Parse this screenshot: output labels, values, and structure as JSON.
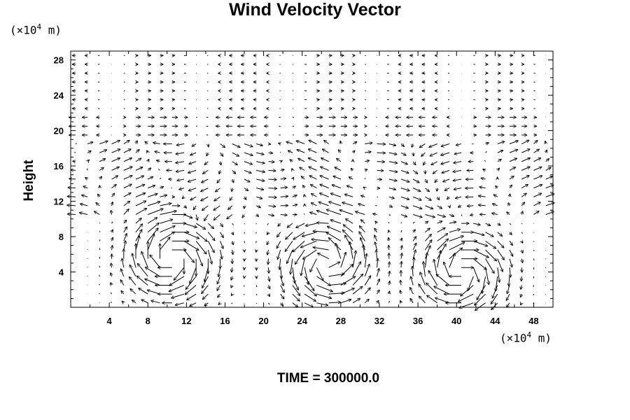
{
  "chart_data": {
    "type": "vector_field",
    "title": "Wind Velocity Vector",
    "ylabel": "Height",
    "x_unit_prefix": "(×10",
    "x_unit_exp": "4",
    "x_unit_suffix": " m)",
    "y_unit_prefix": "(×10",
    "y_unit_exp": "4",
    "y_unit_suffix": " m)",
    "xlim": [
      0,
      50
    ],
    "ylim": [
      0,
      29
    ],
    "x_ticks": [
      4,
      8,
      12,
      16,
      20,
      24,
      28,
      32,
      36,
      40,
      44,
      48
    ],
    "y_ticks": [
      4,
      8,
      12,
      16,
      20,
      24,
      28
    ],
    "grid": false,
    "features": [
      {
        "kind": "eddy",
        "x": 10.5,
        "y": 5.5,
        "radius": 4.5,
        "rotation": "clockwise"
      },
      {
        "kind": "eddy",
        "x": 26.5,
        "y": 5,
        "radius": 4.5,
        "rotation": "counterclockwise"
      },
      {
        "kind": "eddy",
        "x": 40.5,
        "y": 4,
        "radius": 4.5,
        "rotation": "clockwise"
      },
      {
        "kind": "westward_jet",
        "y": 19,
        "speed": "strong"
      }
    ],
    "time_label": "TIME = 300000.0"
  }
}
